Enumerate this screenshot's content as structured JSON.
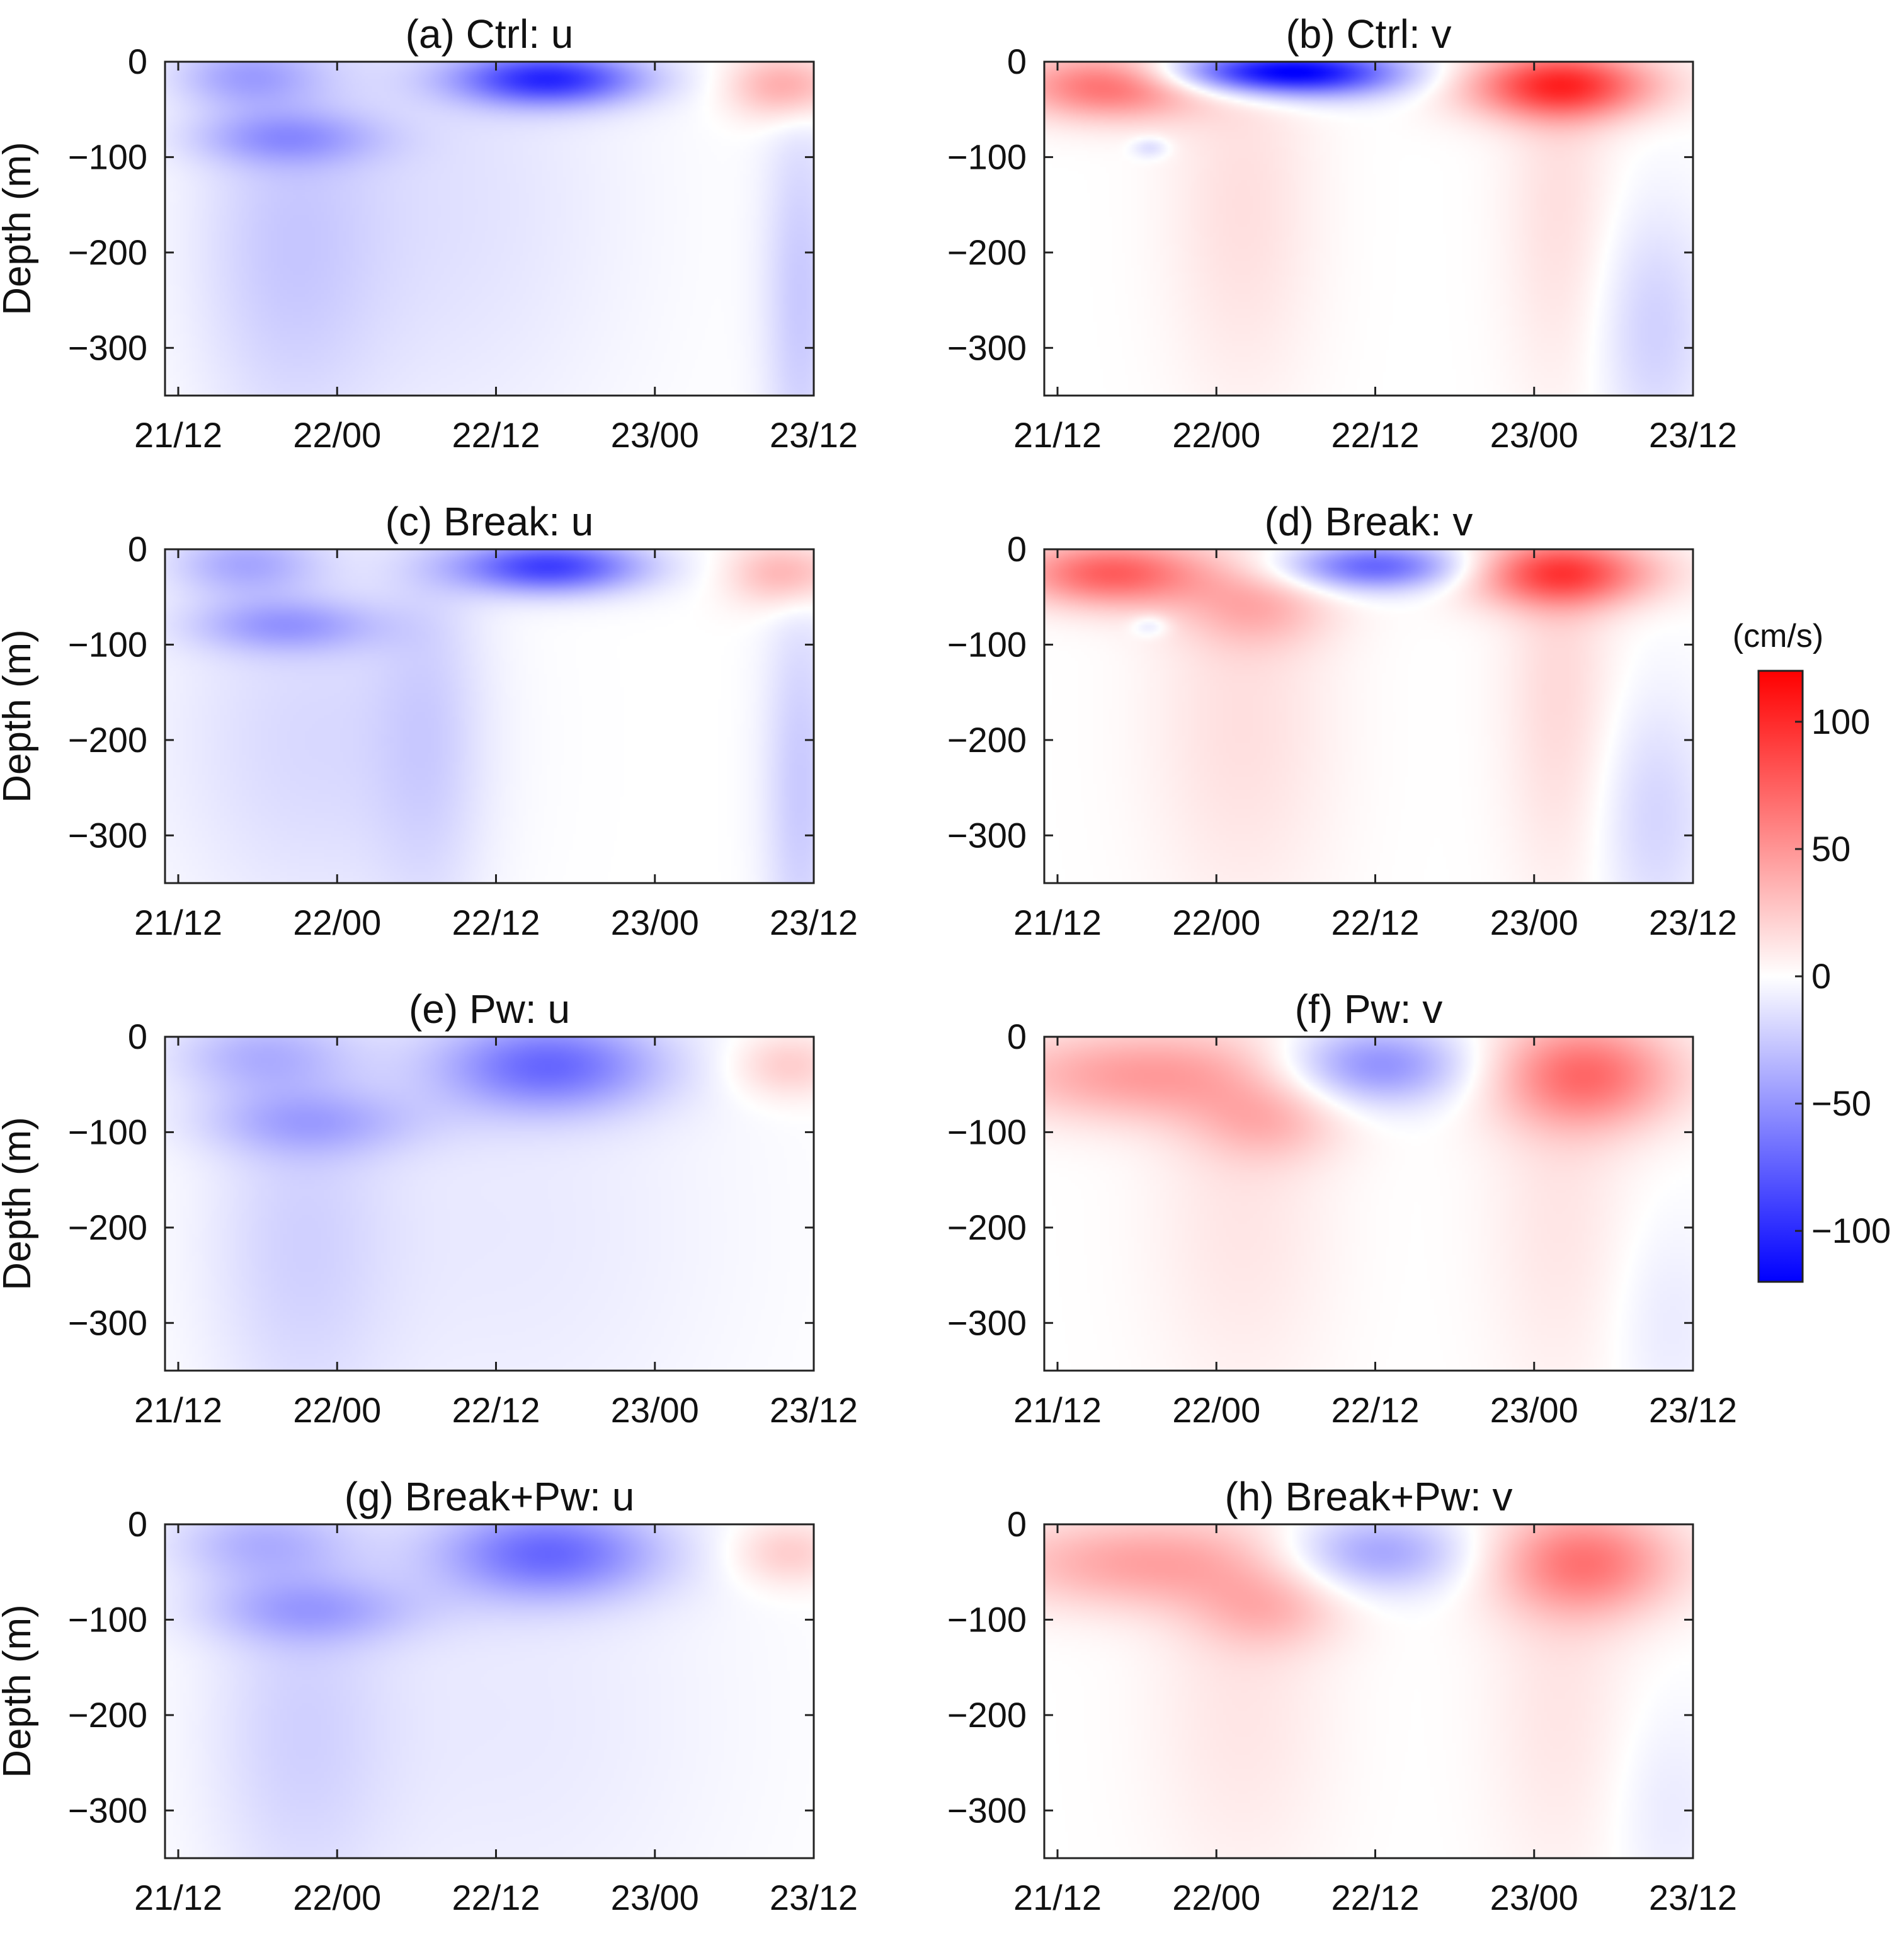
{
  "chart_data": {
    "type": "heatmap",
    "colorbar": {
      "label": "(cm/s)",
      "range": [
        -120,
        120
      ],
      "ticks": [
        "100",
        "50",
        "0",
        "−50",
        "−100"
      ],
      "tick_values": [
        100,
        50,
        0,
        -50,
        -100
      ],
      "colors": {
        "negative": "#0000ff",
        "zero": "#ffffff",
        "positive": "#ff0000"
      }
    },
    "shared_axes": {
      "ylabel": "Depth (m)",
      "ylim": [
        -350,
        0
      ],
      "yticks": [
        "0",
        "−100",
        "−200",
        "−300"
      ],
      "ytick_values": [
        0,
        -100,
        -200,
        -300
      ],
      "xlim_hours": [
        -1,
        48
      ],
      "xticks": [
        "21/12",
        "22/00",
        "22/12",
        "23/00",
        "23/12"
      ],
      "xtick_hours": [
        0,
        12,
        24,
        36,
        48
      ]
    },
    "panels": [
      {
        "id": "a",
        "title": "(a) Ctrl: u",
        "blobs": [
          {
            "t": 28,
            "z": -18,
            "st": 5,
            "sz": 20,
            "v": -95
          },
          {
            "t": 5,
            "z": -15,
            "st": 4,
            "sz": 25,
            "v": -35
          },
          {
            "t": 8,
            "z": -80,
            "st": 5,
            "sz": 20,
            "v": -35
          },
          {
            "t": 46,
            "z": -25,
            "st": 3,
            "sz": 25,
            "v": 45
          },
          {
            "t": 8,
            "z": -200,
            "st": 5,
            "sz": 150,
            "v": -20
          },
          {
            "t": 20,
            "z": -150,
            "st": 10,
            "sz": 200,
            "v": -14
          },
          {
            "t": 47,
            "z": -250,
            "st": 2,
            "sz": 150,
            "v": -25
          }
        ]
      },
      {
        "id": "b",
        "title": "(b) Ctrl: v",
        "blobs": [
          {
            "t": 4,
            "z": -25,
            "st": 5,
            "sz": 25,
            "v": 70
          },
          {
            "t": 14,
            "z": -10,
            "st": 5,
            "sz": 16,
            "v": -75
          },
          {
            "t": 20,
            "z": -12,
            "st": 5,
            "sz": 18,
            "v": -80
          },
          {
            "t": 38,
            "z": -25,
            "st": 5,
            "sz": 25,
            "v": 95
          },
          {
            "t": 14,
            "z": -150,
            "st": 4,
            "sz": 150,
            "v": 15
          },
          {
            "t": 38,
            "z": -150,
            "st": 3,
            "sz": 150,
            "v": 15
          },
          {
            "t": 45,
            "z": -280,
            "st": 3,
            "sz": 90,
            "v": -22
          },
          {
            "t": 7,
            "z": -90,
            "st": 1,
            "sz": 8,
            "v": -20
          }
        ]
      },
      {
        "id": "c",
        "title": "(c) Break: u",
        "blobs": [
          {
            "t": 28,
            "z": -18,
            "st": 5,
            "sz": 20,
            "v": -90
          },
          {
            "t": 5,
            "z": -15,
            "st": 4,
            "sz": 25,
            "v": -35
          },
          {
            "t": 8,
            "z": -80,
            "st": 5,
            "sz": 20,
            "v": -38
          },
          {
            "t": 46,
            "z": -25,
            "st": 3,
            "sz": 25,
            "v": 40
          },
          {
            "t": 10,
            "z": -200,
            "st": 8,
            "sz": 150,
            "v": -18
          },
          {
            "t": 19,
            "z": -200,
            "st": 3,
            "sz": 150,
            "v": -16
          },
          {
            "t": 47,
            "z": -250,
            "st": 2,
            "sz": 150,
            "v": -25
          }
        ]
      },
      {
        "id": "d",
        "title": "(d) Break: v",
        "blobs": [
          {
            "t": 4,
            "z": -25,
            "st": 5,
            "sz": 25,
            "v": 75
          },
          {
            "t": 24,
            "z": -18,
            "st": 5,
            "sz": 18,
            "v": -75
          },
          {
            "t": 15,
            "z": -60,
            "st": 4,
            "sz": 30,
            "v": 30
          },
          {
            "t": 38,
            "z": -25,
            "st": 5,
            "sz": 25,
            "v": 85
          },
          {
            "t": 14,
            "z": -180,
            "st": 5,
            "sz": 150,
            "v": 15
          },
          {
            "t": 38,
            "z": -150,
            "st": 3,
            "sz": 150,
            "v": 18
          },
          {
            "t": 45,
            "z": -280,
            "st": 3,
            "sz": 90,
            "v": -20
          },
          {
            "t": 7,
            "z": -80,
            "st": 1,
            "sz": 8,
            "v": -20
          }
        ]
      },
      {
        "id": "e",
        "title": "(e) Pw: u",
        "blobs": [
          {
            "t": 28,
            "z": -30,
            "st": 6,
            "sz": 35,
            "v": -65
          },
          {
            "t": 6,
            "z": -20,
            "st": 5,
            "sz": 30,
            "v": -30
          },
          {
            "t": 10,
            "z": -90,
            "st": 6,
            "sz": 25,
            "v": -30
          },
          {
            "t": 46,
            "z": -30,
            "st": 3,
            "sz": 25,
            "v": 25
          },
          {
            "t": 9,
            "z": -220,
            "st": 5,
            "sz": 150,
            "v": -18
          },
          {
            "t": 25,
            "z": -200,
            "st": 12,
            "sz": 200,
            "v": -10
          }
        ]
      },
      {
        "id": "f",
        "title": "(f) Pw: v",
        "blobs": [
          {
            "t": 6,
            "z": -40,
            "st": 8,
            "sz": 35,
            "v": 45
          },
          {
            "t": 24,
            "z": -30,
            "st": 5,
            "sz": 30,
            "v": -55
          },
          {
            "t": 16,
            "z": -90,
            "st": 4,
            "sz": 30,
            "v": 25
          },
          {
            "t": 40,
            "z": -40,
            "st": 5,
            "sz": 40,
            "v": 65
          },
          {
            "t": 14,
            "z": -180,
            "st": 5,
            "sz": 150,
            "v": 12
          },
          {
            "t": 38,
            "z": -180,
            "st": 4,
            "sz": 150,
            "v": 12
          },
          {
            "t": 46,
            "z": -300,
            "st": 3,
            "sz": 80,
            "v": -10
          }
        ]
      },
      {
        "id": "g",
        "title": "(g) Break+Pw: u",
        "blobs": [
          {
            "t": 28,
            "z": -30,
            "st": 6,
            "sz": 35,
            "v": -65
          },
          {
            "t": 6,
            "z": -20,
            "st": 5,
            "sz": 30,
            "v": -30
          },
          {
            "t": 10,
            "z": -90,
            "st": 6,
            "sz": 25,
            "v": -32
          },
          {
            "t": 46,
            "z": -30,
            "st": 3,
            "sz": 25,
            "v": 25
          },
          {
            "t": 9,
            "z": -220,
            "st": 5,
            "sz": 150,
            "v": -18
          },
          {
            "t": 25,
            "z": -200,
            "st": 12,
            "sz": 200,
            "v": -10
          }
        ]
      },
      {
        "id": "h",
        "title": "(h) Break+Pw: v",
        "blobs": [
          {
            "t": 6,
            "z": -40,
            "st": 8,
            "sz": 35,
            "v": 42
          },
          {
            "t": 24,
            "z": -30,
            "st": 5,
            "sz": 30,
            "v": -45
          },
          {
            "t": 16,
            "z": -90,
            "st": 4,
            "sz": 30,
            "v": 25
          },
          {
            "t": 40,
            "z": -40,
            "st": 5,
            "sz": 40,
            "v": 60
          },
          {
            "t": 14,
            "z": -180,
            "st": 5,
            "sz": 150,
            "v": 12
          },
          {
            "t": 38,
            "z": -180,
            "st": 4,
            "sz": 150,
            "v": 12
          },
          {
            "t": 46,
            "z": -300,
            "st": 3,
            "sz": 80,
            "v": -10
          }
        ]
      }
    ]
  }
}
